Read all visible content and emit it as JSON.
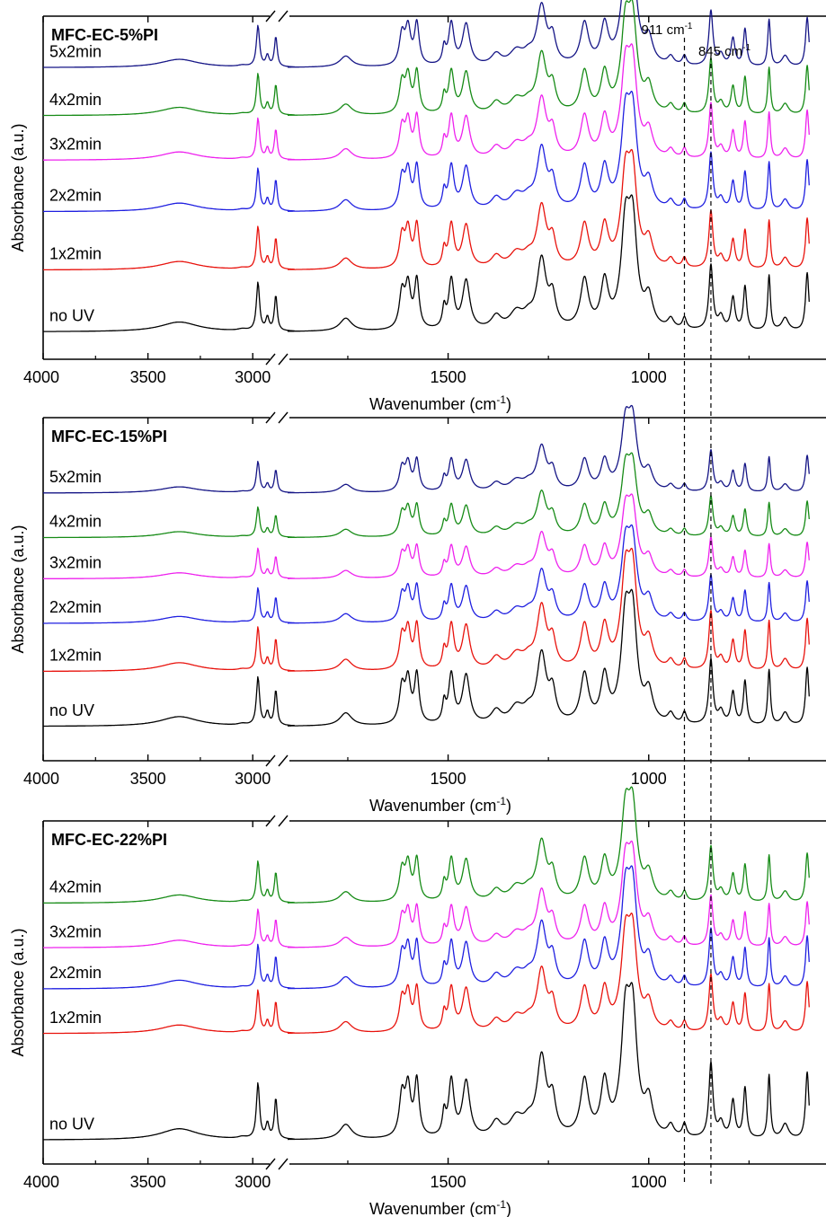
{
  "chart_data": [
    {
      "type": "line",
      "title": "MFC-EC-5%PI",
      "xlabel": "Wavenumber (cm",
      "xlabel_sup": "-1",
      "xlabel_tail": ")",
      "ylabel": "Absorbance (a.u.)",
      "x_break": [
        2800,
        1900
      ],
      "xticks": [
        4000,
        3500,
        3000,
        1500,
        1000
      ],
      "colors": {
        "no UV": "#000000",
        "1x2min": "#e8120c",
        "2x2min": "#1f1fe0",
        "3x2min": "#ee22ee",
        "4x2min": "#168b16",
        "5x2min": "#151586"
      },
      "series": [
        {
          "name": "no UV",
          "color": "#000000",
          "baseline": 0.92,
          "scale": 1.0
        },
        {
          "name": "1x2min",
          "color": "#e8120c",
          "baseline": 0.74,
          "scale": 0.88
        },
        {
          "name": "2x2min",
          "color": "#1f1fe0",
          "baseline": 0.57,
          "scale": 0.88
        },
        {
          "name": "3x2min",
          "color": "#ee22ee",
          "baseline": 0.42,
          "scale": 0.85
        },
        {
          "name": "4x2min",
          "color": "#168b16",
          "baseline": 0.29,
          "scale": 0.85
        },
        {
          "name": "5x2min",
          "color": "#151586",
          "baseline": 0.15,
          "scale": 0.85
        }
      ]
    },
    {
      "type": "line",
      "title": "MFC-EC-15%PI",
      "xlabel": "Wavenumber (cm",
      "xlabel_sup": "-1",
      "xlabel_tail": ")",
      "ylabel": "Absorbance (a.u.)",
      "x_break": [
        2800,
        1900
      ],
      "xticks": [
        4000,
        3500,
        3000,
        1500,
        1000
      ],
      "series": [
        {
          "name": "no UV",
          "color": "#000000",
          "baseline": 0.9,
          "scale": 1.0
        },
        {
          "name": "1x2min",
          "color": "#e8120c",
          "baseline": 0.74,
          "scale": 0.9
        },
        {
          "name": "2x2min",
          "color": "#1f1fe0",
          "baseline": 0.6,
          "scale": 0.72
        },
        {
          "name": "3x2min",
          "color": "#ee22ee",
          "baseline": 0.47,
          "scale": 0.62
        },
        {
          "name": "4x2min",
          "color": "#168b16",
          "baseline": 0.35,
          "scale": 0.62
        },
        {
          "name": "5x2min",
          "color": "#151586",
          "baseline": 0.22,
          "scale": 0.64
        }
      ]
    },
    {
      "type": "line",
      "title": "MFC-EC-22%PI",
      "xlabel": "Wavenumber (cm",
      "xlabel_sup": "-1",
      "xlabel_tail": ")",
      "ylabel": "Absorbance (a.u.)",
      "x_break": [
        2800,
        1900
      ],
      "xticks": [
        4000,
        3500,
        3000,
        1500,
        1000
      ],
      "series": [
        {
          "name": "no UV",
          "color": "#000000",
          "baseline": 0.93,
          "scale": 1.15
        },
        {
          "name": "1x2min",
          "color": "#e8120c",
          "baseline": 0.62,
          "scale": 0.88
        },
        {
          "name": "2x2min",
          "color": "#1f1fe0",
          "baseline": 0.49,
          "scale": 0.9
        },
        {
          "name": "3x2min",
          "color": "#ee22ee",
          "baseline": 0.37,
          "scale": 0.78
        },
        {
          "name": "4x2min",
          "color": "#168b16",
          "baseline": 0.24,
          "scale": 0.85
        }
      ]
    }
  ],
  "annotations": [
    {
      "wavenumber": 911,
      "label": "911 cm",
      "sup": "-1"
    },
    {
      "wavenumber": 845,
      "label": "845 cm",
      "sup": "-1"
    }
  ]
}
